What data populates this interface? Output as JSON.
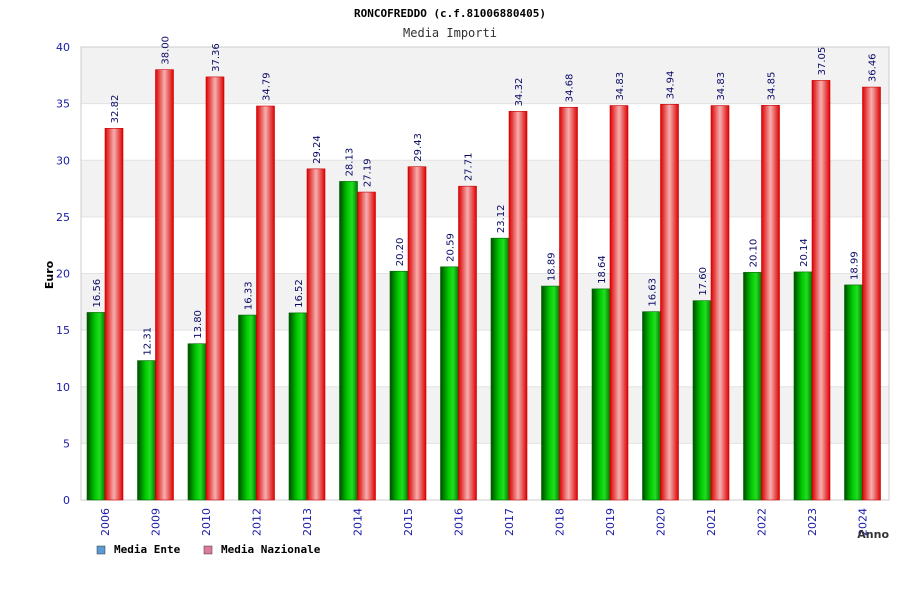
{
  "chart_data": {
    "type": "bar",
    "title": "RONCOFREDDO (c.f.81006880405)",
    "subtitle": "Media Importi",
    "xlabel": "Anno",
    "ylabel": "Euro",
    "ylim": [
      0,
      40
    ],
    "yticks": [
      0,
      5,
      10,
      15,
      20,
      25,
      30,
      35,
      40
    ],
    "categories": [
      "2006",
      "2009",
      "2010",
      "2012",
      "2013",
      "2014",
      "2015",
      "2016",
      "2017",
      "2018",
      "2019",
      "2020",
      "2021",
      "2022",
      "2023",
      "2024"
    ],
    "series": [
      {
        "name": "Media Ente",
        "values": [
          16.56,
          12.31,
          13.8,
          16.33,
          16.52,
          28.13,
          20.2,
          20.59,
          23.12,
          18.89,
          18.64,
          16.63,
          17.6,
          20.1,
          20.14,
          18.99
        ],
        "labels": [
          "16.56",
          "12.31",
          "13.80",
          "16.33",
          "16.52",
          "28.13",
          "20.20",
          "20.59",
          "23.12",
          "18.89",
          "18.64",
          "16.63",
          "17.60",
          "20.10",
          "20.14",
          "18.99"
        ]
      },
      {
        "name": "Media Nazionale",
        "values": [
          32.82,
          38.0,
          37.36,
          34.79,
          29.24,
          27.19,
          29.43,
          27.71,
          34.32,
          34.68,
          34.83,
          34.94,
          34.83,
          34.85,
          37.05,
          36.46
        ],
        "labels": [
          "32.82",
          "38.00",
          "37.36",
          "34.79",
          "29.24",
          "27.19",
          "29.43",
          "27.71",
          "34.32",
          "34.68",
          "34.83",
          "34.94",
          "34.83",
          "34.85",
          "37.05",
          "36.46"
        ]
      }
    ],
    "legend_position": "bottom-left",
    "grid": true
  },
  "colors": {
    "ente_bar": "#00b000",
    "ente_dark": "#006400",
    "naz_bar": "#ee1111",
    "naz_light": "#f4a0a0",
    "legend_ente": "#5b9bd5",
    "legend_naz": "#e07a9a",
    "axis_text": "#1a1aa6",
    "grid_band": "#f2f2f2"
  }
}
